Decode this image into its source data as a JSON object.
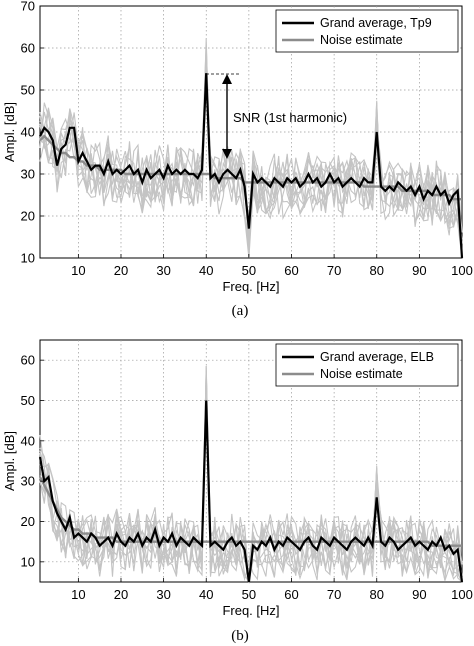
{
  "colors": {
    "grand_average": "#000000",
    "noise_estimate": "#8c8c8c",
    "individual": "#c4c4c4"
  },
  "annotation_a": "SNR (1st harmonic)",
  "chart_data": [
    {
      "type": "line",
      "panel_label": "(a)",
      "xlabel": "Freq. [Hz]",
      "ylabel": "Ampl. [dB]",
      "xlim": [
        1,
        100
      ],
      "ylim": [
        10,
        70
      ],
      "xticks": [
        10,
        20,
        30,
        40,
        50,
        60,
        70,
        80,
        90,
        100
      ],
      "yticks": [
        10,
        20,
        30,
        40,
        50,
        60,
        70
      ],
      "grid": true,
      "legend_position": "top-right",
      "x": [
        1,
        2,
        3,
        4,
        5,
        6,
        7,
        8,
        9,
        10,
        11,
        12,
        13,
        14,
        15,
        16,
        17,
        18,
        19,
        20,
        21,
        22,
        23,
        24,
        25,
        26,
        27,
        28,
        29,
        30,
        31,
        32,
        33,
        34,
        35,
        36,
        37,
        38,
        39,
        40,
        41,
        42,
        43,
        44,
        45,
        46,
        47,
        48,
        49,
        50,
        51,
        52,
        53,
        54,
        55,
        56,
        57,
        58,
        59,
        60,
        61,
        62,
        63,
        64,
        65,
        66,
        67,
        68,
        69,
        70,
        71,
        72,
        73,
        74,
        75,
        76,
        77,
        78,
        79,
        80,
        81,
        82,
        83,
        84,
        85,
        86,
        87,
        88,
        89,
        90,
        91,
        92,
        93,
        94,
        95,
        96,
        97,
        98,
        99,
        100
      ],
      "series": [
        {
          "name": "Grand average, Tp9",
          "values": [
            39,
            41,
            40,
            38,
            32,
            36,
            37,
            41,
            41,
            33,
            35,
            33,
            31,
            32,
            32,
            30,
            33,
            30,
            31,
            30,
            31,
            32,
            30,
            31,
            28,
            31,
            29,
            30,
            31,
            29,
            32,
            30,
            31,
            30,
            31,
            30,
            30,
            29,
            31,
            54,
            29,
            30,
            28,
            30,
            31,
            30,
            29,
            31,
            27,
            17,
            30,
            28,
            29,
            28,
            27,
            29,
            28,
            27,
            29,
            28,
            29,
            27,
            28,
            30,
            28,
            29,
            27,
            28,
            30,
            28,
            29,
            27,
            28,
            29,
            28,
            27,
            29,
            28,
            28,
            40,
            27,
            26,
            27,
            26,
            28,
            27,
            26,
            27,
            25,
            27,
            24,
            26,
            25,
            27,
            25,
            26,
            23,
            25,
            26,
            10
          ]
        },
        {
          "name": "Noise estimate",
          "values": [
            38,
            39,
            38,
            37,
            36,
            35,
            35,
            34,
            34,
            33,
            33,
            32,
            32,
            32,
            31,
            31,
            31,
            31,
            31,
            31,
            30,
            30,
            30,
            30,
            30,
            30,
            30,
            30,
            30,
            30,
            30,
            30,
            30,
            30,
            30,
            30,
            30,
            30,
            30,
            30,
            30,
            29,
            29,
            29,
            29,
            29,
            29,
            29,
            28,
            28,
            28,
            28,
            28,
            28,
            28,
            28,
            28,
            28,
            28,
            28,
            28,
            28,
            28,
            28,
            28,
            28,
            28,
            28,
            28,
            28,
            28,
            28,
            28,
            28,
            28,
            28,
            27,
            27,
            27,
            27,
            27,
            27,
            27,
            27,
            27,
            26,
            26,
            26,
            26,
            26,
            26,
            26,
            25,
            25,
            25,
            25,
            25,
            24,
            24,
            24
          ]
        }
      ],
      "snr_marker": {
        "x": 44,
        "top": 54,
        "bottom": 30
      }
    },
    {
      "type": "line",
      "panel_label": "(b)",
      "xlabel": "Freq. [Hz]",
      "ylabel": "Ampl. [dB]",
      "xlim": [
        1,
        100
      ],
      "ylim": [
        5,
        65
      ],
      "xticks": [
        10,
        20,
        30,
        40,
        50,
        60,
        70,
        80,
        90,
        100
      ],
      "yticks": [
        10,
        20,
        30,
        40,
        50,
        60
      ],
      "grid": true,
      "legend_position": "top-right",
      "x": [
        1,
        2,
        3,
        4,
        5,
        6,
        7,
        8,
        9,
        10,
        11,
        12,
        13,
        14,
        15,
        16,
        17,
        18,
        19,
        20,
        21,
        22,
        23,
        24,
        25,
        26,
        27,
        28,
        29,
        30,
        31,
        32,
        33,
        34,
        35,
        36,
        37,
        38,
        39,
        40,
        41,
        42,
        43,
        44,
        45,
        46,
        47,
        48,
        49,
        50,
        51,
        52,
        53,
        54,
        55,
        56,
        57,
        58,
        59,
        60,
        61,
        62,
        63,
        64,
        65,
        66,
        67,
        68,
        69,
        70,
        71,
        72,
        73,
        74,
        75,
        76,
        77,
        78,
        79,
        80,
        81,
        82,
        83,
        84,
        85,
        86,
        87,
        88,
        89,
        90,
        91,
        92,
        93,
        94,
        95,
        96,
        97,
        98,
        99,
        100
      ],
      "series": [
        {
          "name": "Grand average, ELB",
          "values": [
            36,
            30,
            31,
            25,
            22,
            20,
            18,
            21,
            16,
            17,
            16,
            15,
            17,
            16,
            14,
            15,
            16,
            14,
            17,
            15,
            14,
            16,
            15,
            17,
            14,
            16,
            15,
            18,
            14,
            16,
            15,
            17,
            14,
            16,
            15,
            14,
            16,
            15,
            14,
            50,
            14,
            15,
            14,
            13,
            15,
            16,
            14,
            15,
            13,
            5,
            14,
            13,
            15,
            14,
            16,
            13,
            15,
            14,
            16,
            15,
            14,
            13,
            15,
            16,
            14,
            13,
            16,
            15,
            14,
            16,
            15,
            14,
            13,
            15,
            16,
            15,
            14,
            16,
            14,
            26,
            15,
            14,
            16,
            15,
            13,
            14,
            15,
            16,
            14,
            15,
            14,
            13,
            15,
            14,
            16,
            13,
            14,
            12,
            13,
            5
          ]
        },
        {
          "name": "Noise estimate",
          "values": [
            31,
            29,
            27,
            25,
            23,
            21,
            20,
            19,
            18,
            18,
            17,
            17,
            17,
            16,
            16,
            16,
            16,
            16,
            15,
            15,
            15,
            15,
            15,
            15,
            15,
            15,
            15,
            15,
            15,
            15,
            15,
            15,
            15,
            15,
            15,
            15,
            15,
            15,
            15,
            15,
            15,
            15,
            15,
            15,
            15,
            15,
            15,
            15,
            15,
            15,
            15,
            15,
            15,
            15,
            15,
            15,
            15,
            15,
            15,
            15,
            15,
            15,
            15,
            15,
            15,
            15,
            15,
            15,
            15,
            15,
            15,
            15,
            15,
            15,
            15,
            15,
            15,
            15,
            15,
            15,
            15,
            15,
            15,
            15,
            15,
            15,
            15,
            15,
            15,
            15,
            15,
            15,
            14,
            14,
            14,
            14,
            14,
            14,
            14,
            14
          ]
        }
      ]
    }
  ]
}
